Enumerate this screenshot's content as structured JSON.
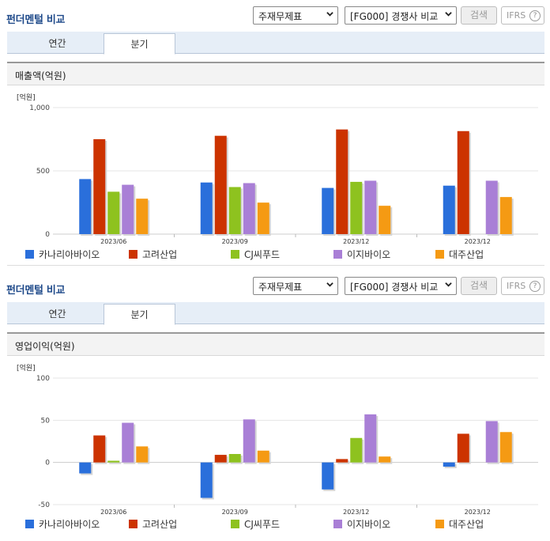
{
  "header": {
    "title": "펀더멘털 비교",
    "select1": "주재무제표",
    "select2": "[FG000] 경쟁사 비교",
    "search_button": "검색",
    "ifrs_label": "IFRS",
    "help_icon": "?"
  },
  "tabs": [
    "연간",
    "분기"
  ],
  "active_tab": "분기",
  "colors": {
    "카나리아바이오": "#2a6fdb",
    "고려산업": "#cc3300",
    "CJ씨푸드": "#8ec21f",
    "이지바이오": "#a97fd6",
    "대주산업": "#f59a13"
  },
  "legend": [
    "카나리아바이오",
    "고려산업",
    "CJ씨푸드",
    "이지바이오",
    "대주산업"
  ],
  "charts": [
    {
      "section_title": "매출액(억원)",
      "chart_data": {
        "type": "bar",
        "unit_label": "[억원]",
        "categories": [
          "2023/06",
          "2023/09",
          "2023/12",
          "2023/12"
        ],
        "ylim": [
          0,
          1000
        ],
        "yticks": [
          0,
          500,
          1000
        ],
        "ytick_labels": [
          "0",
          "500",
          "1,000"
        ],
        "series": [
          {
            "name": "카나리아바이오",
            "values": [
              435,
              408,
              365,
              383
            ]
          },
          {
            "name": "고려산업",
            "values": [
              750,
              777,
              827,
              814
            ]
          },
          {
            "name": "CJ씨푸드",
            "values": [
              335,
              372,
              413,
              null
            ]
          },
          {
            "name": "이지바이오",
            "values": [
              390,
              403,
              422,
              422
            ]
          },
          {
            "name": "대주산업",
            "values": [
              280,
              249,
              224,
              293
            ]
          }
        ]
      }
    },
    {
      "section_title": "영업이익(억원)",
      "chart_data": {
        "type": "bar",
        "unit_label": "[억원]",
        "categories": [
          "2023/06",
          "2023/09",
          "2023/12",
          "2023/12"
        ],
        "ylim": [
          -50,
          100
        ],
        "yticks": [
          -50,
          0,
          50,
          100
        ],
        "ytick_labels": [
          "-50",
          "0",
          "50",
          "100"
        ],
        "series": [
          {
            "name": "카나리아바이오",
            "values": [
              -13,
              -42,
              -32,
              -5
            ]
          },
          {
            "name": "고려산업",
            "values": [
              32,
              9,
              4,
              34
            ]
          },
          {
            "name": "CJ씨푸드",
            "values": [
              2,
              10,
              29,
              null
            ]
          },
          {
            "name": "이지바이오",
            "values": [
              47,
              51,
              57,
              49
            ]
          },
          {
            "name": "대주산업",
            "values": [
              19,
              14,
              7,
              36
            ]
          }
        ]
      }
    }
  ]
}
